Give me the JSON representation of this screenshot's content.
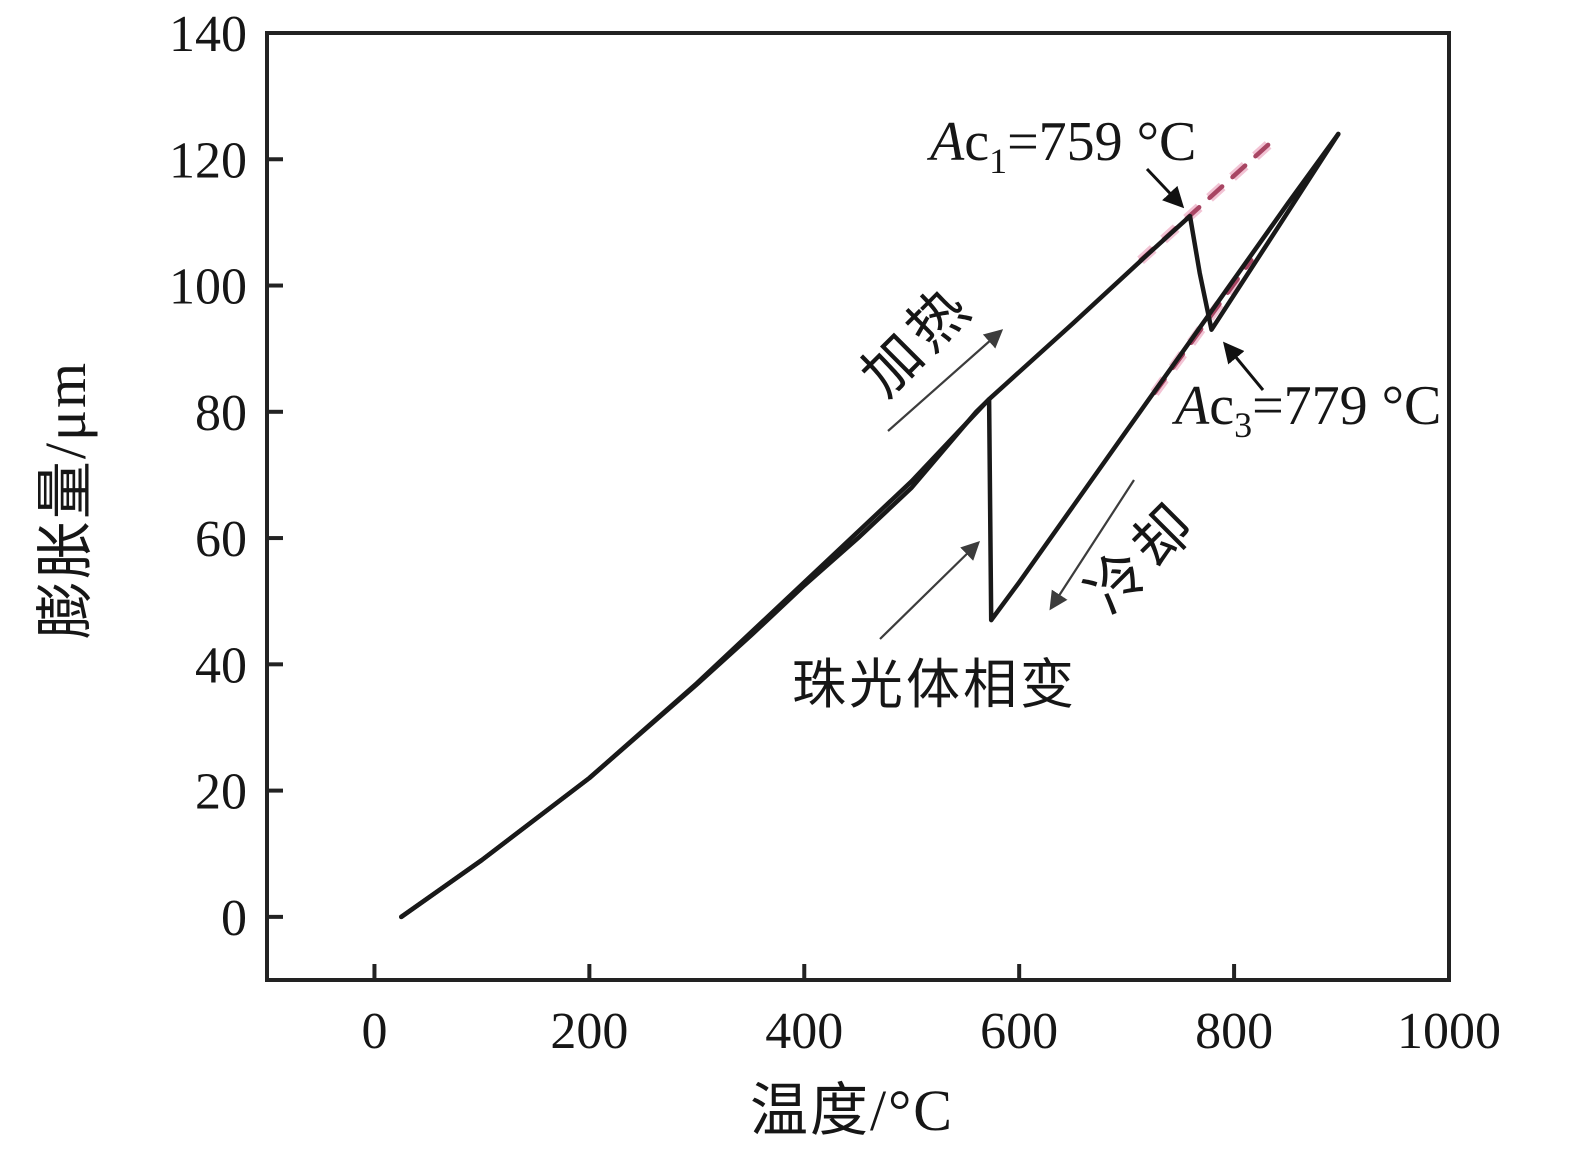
{
  "figure": {
    "background": "#ffffff"
  },
  "chart_data": {
    "type": "line",
    "title": "",
    "xlabel": "温度/°C",
    "ylabel": "膨胀量/μm",
    "xlim": [
      -100,
      1000
    ],
    "ylim": [
      -10,
      140
    ],
    "xticks": [
      0,
      200,
      400,
      600,
      800,
      1000
    ],
    "yticks": [
      0,
      20,
      40,
      60,
      80,
      100,
      120,
      140
    ],
    "grid": false,
    "frame": true,
    "legend": "none",
    "colors": {
      "curve": "#191919",
      "axis": "#222222",
      "dashed_core": "#a84563",
      "dashed_halo": "#f2c3d4",
      "thin_arrow": "#3c3c3c",
      "big_arrow": "#111111"
    },
    "series": [
      {
        "name": "heating-curve",
        "points": [
          [
            25,
            0
          ],
          [
            100,
            9
          ],
          [
            200,
            22
          ],
          [
            300,
            37
          ],
          [
            400,
            53
          ],
          [
            500,
            69
          ],
          [
            572,
            82
          ],
          [
            650,
            94
          ],
          [
            720,
            105
          ],
          [
            759,
            111
          ],
          [
            768,
            102
          ],
          [
            779,
            93
          ],
          [
            840,
            109
          ],
          [
            897,
            124
          ]
        ]
      },
      {
        "name": "cooling-curve",
        "points": [
          [
            897,
            124
          ],
          [
            850,
            113
          ],
          [
            800,
            101
          ],
          [
            750,
            89
          ],
          [
            700,
            77
          ],
          [
            650,
            65
          ],
          [
            600,
            53
          ],
          [
            574,
            47
          ],
          [
            572,
            82
          ],
          [
            560,
            80
          ],
          [
            500,
            68
          ],
          [
            450,
            60
          ],
          [
            400,
            52.5
          ],
          [
            350,
            44.5
          ],
          [
            300,
            36.8
          ],
          [
            200,
            22
          ],
          [
            100,
            9
          ],
          [
            25,
            0
          ]
        ]
      }
    ],
    "extrapolation_dashed": [
      {
        "name": "ac1-extrapolation",
        "points": [
          [
            713,
            104
          ],
          [
            833,
            122.5
          ]
        ]
      },
      {
        "name": "ac3-extrapolation",
        "points": [
          [
            726,
            83
          ],
          [
            816,
            104
          ]
        ]
      }
    ]
  },
  "annotations": {
    "ac1": {
      "symbol": "A",
      "phase": "c",
      "subscript": "1",
      "value": "=759 °C"
    },
    "ac3": {
      "symbol": "A",
      "phase": "c",
      "subscript": "3",
      "value": "=779 °C"
    },
    "heating": "加热",
    "cooling": "冷却",
    "pearlite": "珠光体相变",
    "arrows": [
      {
        "name": "ac1-arrow",
        "kind": "big",
        "from": [
          1147,
          169
        ],
        "to": [
          1182,
          206
        ]
      },
      {
        "name": "ac3-arrow",
        "kind": "big",
        "from": [
          1263,
          390
        ],
        "to": [
          1225,
          344
        ]
      },
      {
        "name": "heating-arrow",
        "kind": "thin",
        "from": [
          888,
          431
        ],
        "to": [
          1001,
          331
        ]
      },
      {
        "name": "cooling-arrow",
        "kind": "thin",
        "from": [
          1134,
          480
        ],
        "to": [
          1051,
          608
        ]
      },
      {
        "name": "pearlite-arrow",
        "kind": "thin",
        "from": [
          880,
          639
        ],
        "to": [
          978,
          543
        ]
      }
    ]
  }
}
